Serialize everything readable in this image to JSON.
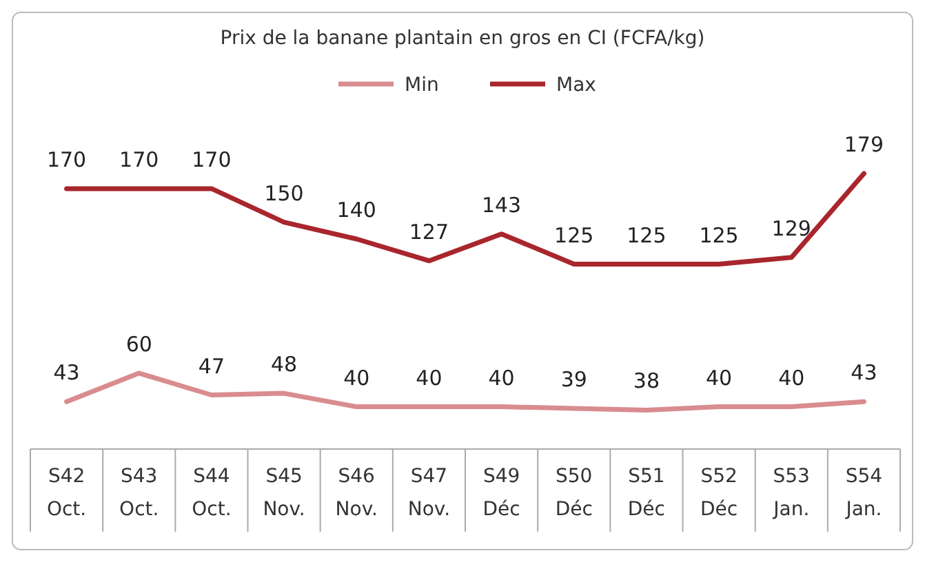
{
  "chart_data": {
    "type": "line",
    "title": "Prix de la banane plantain en gros en CI (FCFA/kg)",
    "categories": [
      "S42 Oct.",
      "S43 Oct.",
      "S44 Oct.",
      "S45 Nov.",
      "S46 Nov.",
      "S47 Nov.",
      "S49 Déc",
      "S50 Déc",
      "S51 Déc",
      "S52 Déc",
      "S53 Jan.",
      "S54 Jan."
    ],
    "series": [
      {
        "name": "Min",
        "color": "#d98c8f",
        "values": [
          43,
          60,
          47,
          48,
          40,
          40,
          40,
          39,
          38,
          40,
          40,
          43
        ]
      },
      {
        "name": "Max",
        "color": "#a8262c",
        "values": [
          170,
          170,
          170,
          150,
          140,
          127,
          143,
          125,
          125,
          125,
          129,
          179
        ]
      }
    ],
    "data_labels": true,
    "legend": "top",
    "grid": false,
    "marker": "none",
    "line_style": "solid"
  }
}
